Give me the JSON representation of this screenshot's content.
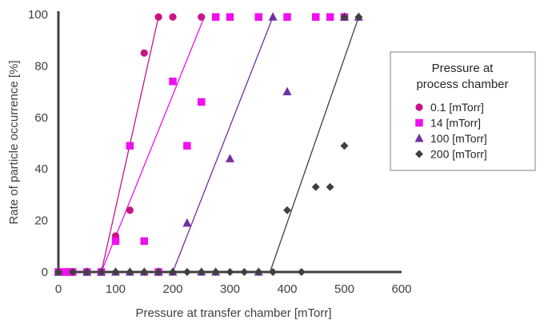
{
  "chart_data": {
    "type": "scatter",
    "xlabel": "Pressure at transfer chamber [mTorr]",
    "ylabel": "Rate of particle occurrence [%]",
    "xlim": [
      0,
      600
    ],
    "ylim": [
      0,
      100
    ],
    "x_ticks": [
      "0",
      "100",
      "200",
      "300",
      "400",
      "500",
      "600"
    ],
    "y_ticks": [
      "0",
      "20",
      "40",
      "60",
      "80",
      "100"
    ],
    "grid": false,
    "legend": {
      "title_lines": [
        "Pressure at",
        "process chamber"
      ],
      "placement": "right"
    },
    "series": [
      {
        "name": "0.1 [mTorr]",
        "marker": "circle",
        "color": "#c71585",
        "points": [
          [
            0,
            0
          ],
          [
            10,
            0
          ],
          [
            20,
            0
          ],
          [
            25,
            0
          ],
          [
            50,
            0
          ],
          [
            75,
            0
          ],
          [
            100,
            14
          ],
          [
            125,
            24
          ],
          [
            150,
            85
          ],
          [
            175,
            99
          ],
          [
            200,
            99
          ],
          [
            250,
            99
          ]
        ],
        "trendline": [
          [
            75,
            0
          ],
          [
            175,
            99
          ]
        ]
      },
      {
        "name": "14 [mTorr]",
        "marker": "square",
        "color": "#ee10ee",
        "points": [
          [
            0,
            0
          ],
          [
            10,
            0
          ],
          [
            20,
            0
          ],
          [
            25,
            0
          ],
          [
            50,
            0
          ],
          [
            75,
            0
          ],
          [
            100,
            12
          ],
          [
            125,
            49
          ],
          [
            150,
            12
          ],
          [
            175,
            0
          ],
          [
            200,
            74
          ],
          [
            225,
            49
          ],
          [
            250,
            66
          ],
          [
            275,
            99
          ],
          [
            300,
            99
          ],
          [
            350,
            99
          ],
          [
            400,
            99
          ],
          [
            450,
            99
          ],
          [
            475,
            99
          ],
          [
            500,
            99
          ]
        ],
        "trendline": [
          [
            75,
            0
          ],
          [
            255,
            99
          ]
        ]
      },
      {
        "name": "100 [mTorr]",
        "marker": "triangle",
        "color": "#7030a0",
        "points": [
          [
            0,
            0
          ],
          [
            50,
            0
          ],
          [
            75,
            0
          ],
          [
            100,
            0
          ],
          [
            125,
            0
          ],
          [
            150,
            0
          ],
          [
            175,
            0
          ],
          [
            200,
            0
          ],
          [
            225,
            19
          ],
          [
            250,
            0
          ],
          [
            275,
            0
          ],
          [
            300,
            44
          ],
          [
            350,
            0
          ],
          [
            375,
            99
          ],
          [
            400,
            70
          ],
          [
            500,
            99
          ],
          [
            525,
            99
          ]
        ],
        "trendline": [
          [
            200,
            0
          ],
          [
            375,
            99
          ]
        ]
      },
      {
        "name": "200 [mTorr]",
        "marker": "diamond",
        "color": "#404040",
        "points": [
          [
            0,
            0
          ],
          [
            25,
            0
          ],
          [
            50,
            0
          ],
          [
            75,
            0
          ],
          [
            100,
            0
          ],
          [
            125,
            0
          ],
          [
            150,
            0
          ],
          [
            175,
            0
          ],
          [
            200,
            0
          ],
          [
            225,
            0
          ],
          [
            250,
            0
          ],
          [
            275,
            0
          ],
          [
            300,
            0
          ],
          [
            325,
            0
          ],
          [
            350,
            0
          ],
          [
            375,
            0
          ],
          [
            400,
            24
          ],
          [
            425,
            0
          ],
          [
            450,
            33
          ],
          [
            475,
            33
          ],
          [
            500,
            49
          ],
          [
            500,
            99
          ],
          [
            525,
            99
          ]
        ],
        "trendline": [
          [
            370,
            0
          ],
          [
            525,
            99
          ]
        ]
      }
    ]
  }
}
